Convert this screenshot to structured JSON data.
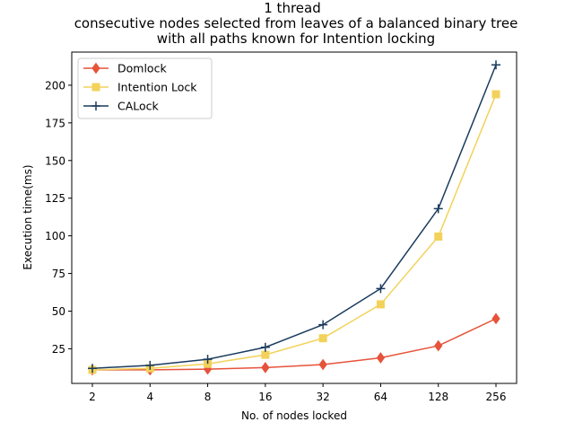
{
  "chart_data": {
    "type": "line",
    "title_lines": [
      "1 thread",
      "consecutive nodes selected from leaves of a balanced binary tree",
      "with all paths known for Intention locking"
    ],
    "xlabel": "No. of nodes locked",
    "ylabel": "Execution time(ms)",
    "categories": [
      "2",
      "4",
      "8",
      "16",
      "32",
      "64",
      "128",
      "256"
    ],
    "ylim": [
      2,
      222
    ],
    "yticks": [
      25,
      50,
      75,
      100,
      125,
      150,
      175,
      200
    ],
    "grid": false,
    "legend_position": "upper-left",
    "series": [
      {
        "name": "Domlock",
        "color": "#e6533a",
        "marker": "diamond",
        "values": [
          11,
          11,
          11.5,
          12.5,
          14.5,
          19,
          27,
          45
        ]
      },
      {
        "name": "Intention Lock",
        "color": "#f2d25a",
        "marker": "square",
        "values": [
          11,
          12,
          15,
          21,
          32,
          54.5,
          99.5,
          194
        ]
      },
      {
        "name": "CALock",
        "color": "#1a3b5d",
        "marker": "plus",
        "values": [
          12,
          14,
          18,
          26,
          41,
          65,
          118,
          213.5
        ]
      }
    ]
  }
}
